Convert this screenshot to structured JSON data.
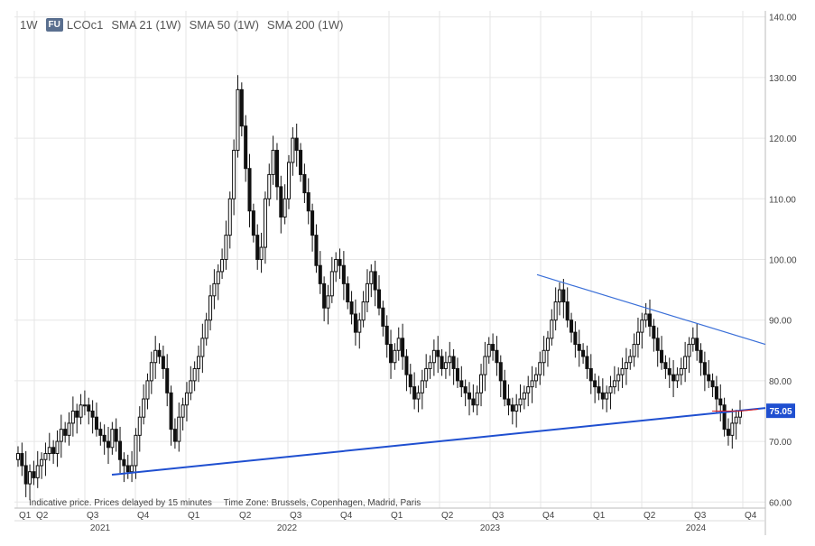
{
  "header": {
    "interval": "1W",
    "badge": "FU",
    "symbol": "LCOc1",
    "studies": [
      "SMA 21 (1W)",
      "SMA 50 (1W)",
      "SMA 200 (1W)"
    ]
  },
  "footnote": {
    "delay": "Indicative price. Prices delayed by 15 minutes",
    "timezone": "Time Zone: Brussels, Copenhagen, Madrid, Paris"
  },
  "colors": {
    "candle": "#111111",
    "trendline_upper": "#3a6fd8",
    "trendline_lower": "#1f4fd0",
    "grid": "#e6e6e6",
    "price_label_bg": "#1f4fd0",
    "marker": "#e02020"
  },
  "chart_data": {
    "type": "candlestick",
    "y_axis": {
      "range": [
        59,
        141
      ],
      "ticks": [
        "60.00",
        "70.00",
        "80.00",
        "90.00",
        "100.00",
        "110.00",
        "120.00",
        "130.00",
        "140.00"
      ],
      "position": "right"
    },
    "x_axis": {
      "quarter_labels": [
        "Q1",
        "Q2",
        "Q3",
        "Q4",
        "Q1",
        "Q2",
        "Q3",
        "Q4",
        "Q1",
        "Q2",
        "Q3",
        "Q4",
        "Q1",
        "Q2",
        "Q3",
        "Q4"
      ],
      "year_labels": [
        "2021",
        "2022",
        "2023",
        "2024"
      ]
    },
    "last_price_label": "75.05",
    "grid": true,
    "trendlines": [
      {
        "from": [
          "2021-Q3",
          64.5
        ],
        "to": [
          "2024-Q4",
          75.5
        ]
      },
      {
        "from": [
          "2023-Q3",
          97.5
        ],
        "to": [
          "2024-Q4",
          86.0
        ]
      }
    ],
    "weekly_close": [
      68,
      66,
      63,
      65,
      64,
      66,
      67,
      68,
      69,
      68,
      70,
      72,
      71,
      73,
      75,
      74,
      76,
      76,
      75,
      74,
      72,
      71,
      70,
      69,
      72,
      70,
      67,
      66,
      65,
      66,
      71,
      74,
      77,
      80,
      83,
      85,
      84,
      82,
      78,
      72,
      70,
      74,
      76,
      78,
      80,
      82,
      84,
      87,
      90,
      94,
      96,
      98,
      100,
      104,
      110,
      118,
      128,
      122,
      115,
      108,
      104,
      100,
      102,
      110,
      114,
      118,
      112,
      107,
      110,
      116,
      120,
      118,
      114,
      111,
      108,
      104,
      99,
      96,
      92,
      94,
      98,
      100,
      99,
      96,
      93,
      91,
      88,
      90,
      93,
      96,
      98,
      95,
      92,
      89,
      86,
      83,
      85,
      87,
      84,
      81,
      79,
      77,
      78,
      80,
      82,
      83,
      85,
      84,
      82,
      83,
      84,
      82,
      80,
      79,
      78,
      77,
      76,
      78,
      81,
      84,
      86,
      85,
      83,
      80,
      77,
      76,
      75,
      76,
      77,
      78,
      79,
      80,
      81,
      83,
      85,
      87,
      90,
      93,
      95,
      93,
      90,
      88,
      86,
      85,
      84,
      82,
      80,
      79,
      78,
      77,
      78,
      79,
      80,
      81,
      82,
      83,
      84,
      86,
      88,
      90,
      91,
      89,
      87,
      85,
      83,
      82,
      81,
      80,
      81,
      82,
      84,
      86,
      87,
      85,
      83,
      81,
      80,
      79,
      77,
      76,
      72,
      71,
      73,
      74,
      75
    ]
  }
}
